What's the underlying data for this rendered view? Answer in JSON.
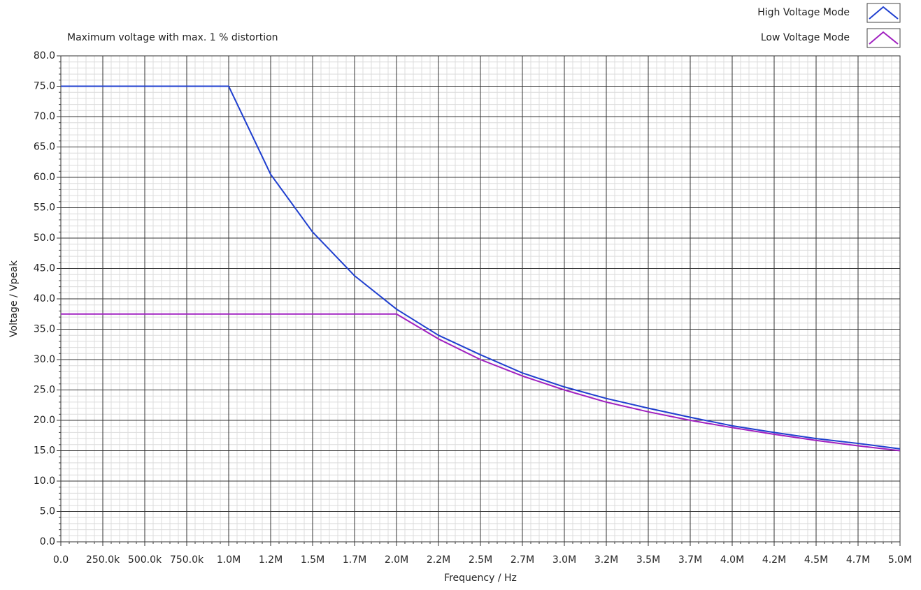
{
  "chart_data": {
    "type": "line",
    "title": "Maximum voltage with max. 1 % distortion",
    "x_label": "Frequency / Hz",
    "y_label": "Voltage / Vpeak",
    "xlim": [
      0,
      5000000
    ],
    "ylim": [
      0,
      80
    ],
    "xticks": [
      {
        "value": 0,
        "label": "0.0"
      },
      {
        "value": 250000,
        "label": "250.0k"
      },
      {
        "value": 500000,
        "label": "500.0k"
      },
      {
        "value": 750000,
        "label": "750.0k"
      },
      {
        "value": 1000000,
        "label": "1.0M"
      },
      {
        "value": 1250000,
        "label": "1.2M"
      },
      {
        "value": 1500000,
        "label": "1.5M"
      },
      {
        "value": 1750000,
        "label": "1.7M"
      },
      {
        "value": 2000000,
        "label": "2.0M"
      },
      {
        "value": 2250000,
        "label": "2.2M"
      },
      {
        "value": 2500000,
        "label": "2.5M"
      },
      {
        "value": 2750000,
        "label": "2.7M"
      },
      {
        "value": 3000000,
        "label": "3.0M"
      },
      {
        "value": 3250000,
        "label": "3.2M"
      },
      {
        "value": 3500000,
        "label": "3.5M"
      },
      {
        "value": 3750000,
        "label": "3.7M"
      },
      {
        "value": 4000000,
        "label": "4.0M"
      },
      {
        "value": 4250000,
        "label": "4.2M"
      },
      {
        "value": 4500000,
        "label": "4.5M"
      },
      {
        "value": 4750000,
        "label": "4.7M"
      },
      {
        "value": 5000000,
        "label": "5.0M"
      }
    ],
    "yticks": [
      {
        "value": 0,
        "label": "0.0"
      },
      {
        "value": 5,
        "label": "5.0"
      },
      {
        "value": 10,
        "label": "10.0"
      },
      {
        "value": 15,
        "label": "15.0"
      },
      {
        "value": 20,
        "label": "20.0"
      },
      {
        "value": 25,
        "label": "25.0"
      },
      {
        "value": 30,
        "label": "30.0"
      },
      {
        "value": 35,
        "label": "35.0"
      },
      {
        "value": 40,
        "label": "40.0"
      },
      {
        "value": 45,
        "label": "45.0"
      },
      {
        "value": 50,
        "label": "50.0"
      },
      {
        "value": 55,
        "label": "55.0"
      },
      {
        "value": 60,
        "label": "60.0"
      },
      {
        "value": 65,
        "label": "65.0"
      },
      {
        "value": 70,
        "label": "70.0"
      },
      {
        "value": 75,
        "label": "75.0"
      },
      {
        "value": 80,
        "label": "80.0"
      }
    ],
    "grid": true,
    "legend": "top-right",
    "series": [
      {
        "name": "High Voltage Mode",
        "color": "#1f3fcf",
        "x": [
          0,
          1000000,
          1250000,
          1500000,
          1750000,
          2000000,
          2250000,
          2500000,
          2750000,
          3000000,
          3250000,
          3500000,
          3750000,
          4000000,
          4250000,
          4500000,
          4750000,
          5000000
        ],
        "values": [
          75,
          75,
          60.5,
          51,
          43.8,
          38.3,
          34,
          30.8,
          27.8,
          25.5,
          23.6,
          22,
          20.5,
          19.1,
          18,
          17,
          16.2,
          15.3
        ]
      },
      {
        "name": "Low Voltage Mode",
        "color": "#a020c0",
        "x": [
          0,
          2000000,
          2250000,
          2500000,
          2750000,
          3000000,
          3250000,
          3500000,
          3750000,
          4000000,
          4250000,
          4500000,
          4750000,
          5000000
        ],
        "values": [
          37.5,
          37.5,
          33.4,
          30,
          27.3,
          25,
          23,
          21.4,
          20,
          18.8,
          17.7,
          16.7,
          15.8,
          15
        ]
      }
    ]
  }
}
